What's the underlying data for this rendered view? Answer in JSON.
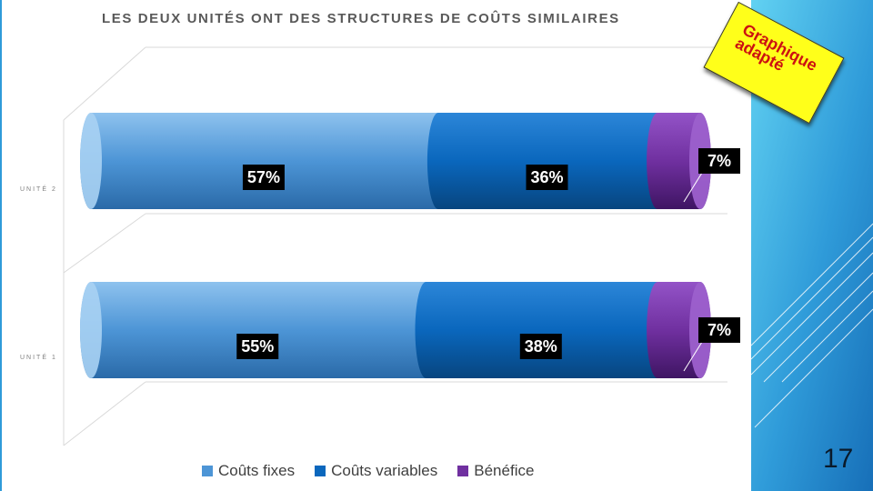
{
  "slide": {
    "page_number": "17",
    "sticker_text": "Graphique adapté",
    "accent_color": "#2e9de0"
  },
  "chart_data": {
    "type": "bar",
    "orientation": "horizontal",
    "stacked": true,
    "percent_stacked": true,
    "title": "LES DEUX UNITÉS ONT DES STRUCTURES DE COÛTS SIMILAIRES",
    "categories": [
      "UNITÉ 2",
      "UNITÉ 1"
    ],
    "series": [
      {
        "name": "Coûts fixes",
        "values": [
          57,
          55
        ],
        "labels": [
          "57%",
          "55%"
        ],
        "color": "#4d95d6"
      },
      {
        "name": "Coûts variables",
        "values": [
          36,
          38
        ],
        "labels": [
          "36%",
          "38%"
        ],
        "color": "#0a67bd"
      },
      {
        "name": "Bénéfice",
        "values": [
          7,
          7
        ],
        "labels": [
          "7%",
          "7%"
        ],
        "color": "#7030a0"
      }
    ],
    "xlim": [
      0,
      100
    ],
    "grid": true,
    "legend": "bottom"
  }
}
